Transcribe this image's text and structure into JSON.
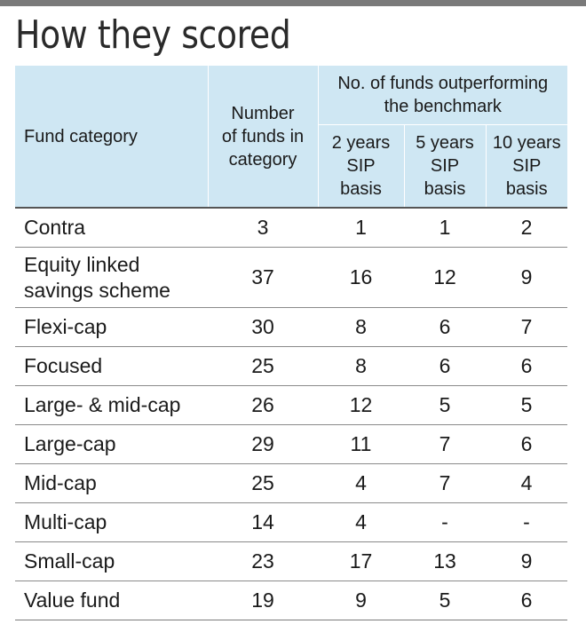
{
  "title": "How they scored",
  "headers": {
    "category": "Fund category",
    "number_lines": [
      "Number",
      "of funds in",
      "category"
    ],
    "group_lines": [
      "No. of funds outperforming",
      "the benchmark"
    ],
    "sub": [
      [
        "2 years",
        "SIP",
        "basis"
      ],
      [
        "5 years",
        "SIP",
        "basis"
      ],
      [
        "10 years",
        "SIP",
        "basis"
      ]
    ]
  },
  "rows": [
    {
      "category": [
        "Contra"
      ],
      "number": "3",
      "y2": "1",
      "y5": "1",
      "y10": "2"
    },
    {
      "category": [
        "Equity linked",
        "savings scheme"
      ],
      "number": "37",
      "y2": "16",
      "y5": "12",
      "y10": "9"
    },
    {
      "category": [
        "Flexi-cap"
      ],
      "number": "30",
      "y2": "8",
      "y5": "6",
      "y10": "7"
    },
    {
      "category": [
        "Focused"
      ],
      "number": "25",
      "y2": "8",
      "y5": "6",
      "y10": "6"
    },
    {
      "category": [
        "Large- & mid-cap"
      ],
      "number": "26",
      "y2": "12",
      "y5": "5",
      "y10": "5"
    },
    {
      "category": [
        "Large-cap"
      ],
      "number": "29",
      "y2": "11",
      "y5": "7",
      "y10": "6"
    },
    {
      "category": [
        "Mid-cap"
      ],
      "number": "25",
      "y2": "4",
      "y5": "7",
      "y10": "4"
    },
    {
      "category": [
        "Multi-cap"
      ],
      "number": "14",
      "y2": "4",
      "y5": "-",
      "y10": "-"
    },
    {
      "category": [
        "Small-cap"
      ],
      "number": "23",
      "y2": "17",
      "y5": "13",
      "y10": "9"
    },
    {
      "category": [
        "Value fund"
      ],
      "number": "19",
      "y2": "9",
      "y5": "5",
      "y10": "6"
    }
  ],
  "colors": {
    "header_bg": "#cfe7f3",
    "rule": "#555555"
  }
}
